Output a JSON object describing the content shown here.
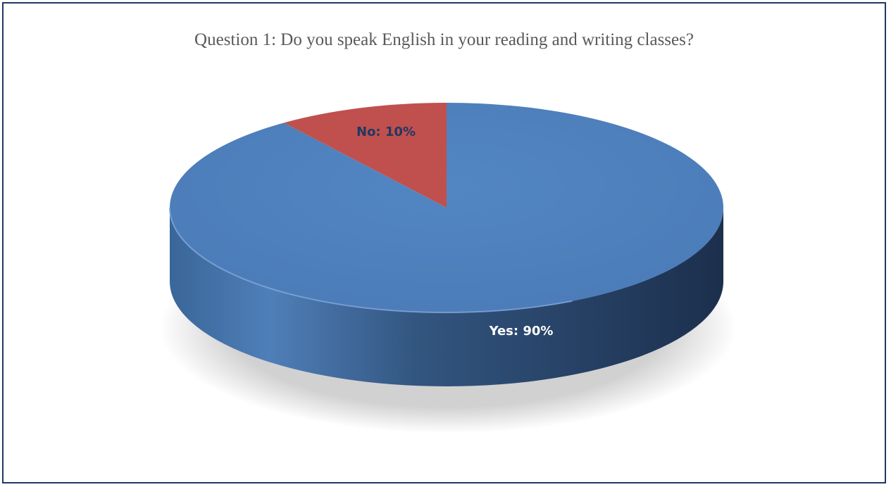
{
  "chart_data": {
    "type": "pie",
    "title": "Question 1: Do you speak English in your reading and writing classes?",
    "categories": [
      "Yes",
      "No"
    ],
    "values": [
      90,
      10
    ],
    "data_labels": [
      "Yes: 90%",
      "No: 10%"
    ],
    "colors": [
      "#4f81bd",
      "#c0504d"
    ],
    "label_colors": [
      "#ffffff",
      "#1f3864"
    ],
    "style": "3d",
    "legend": "none"
  }
}
